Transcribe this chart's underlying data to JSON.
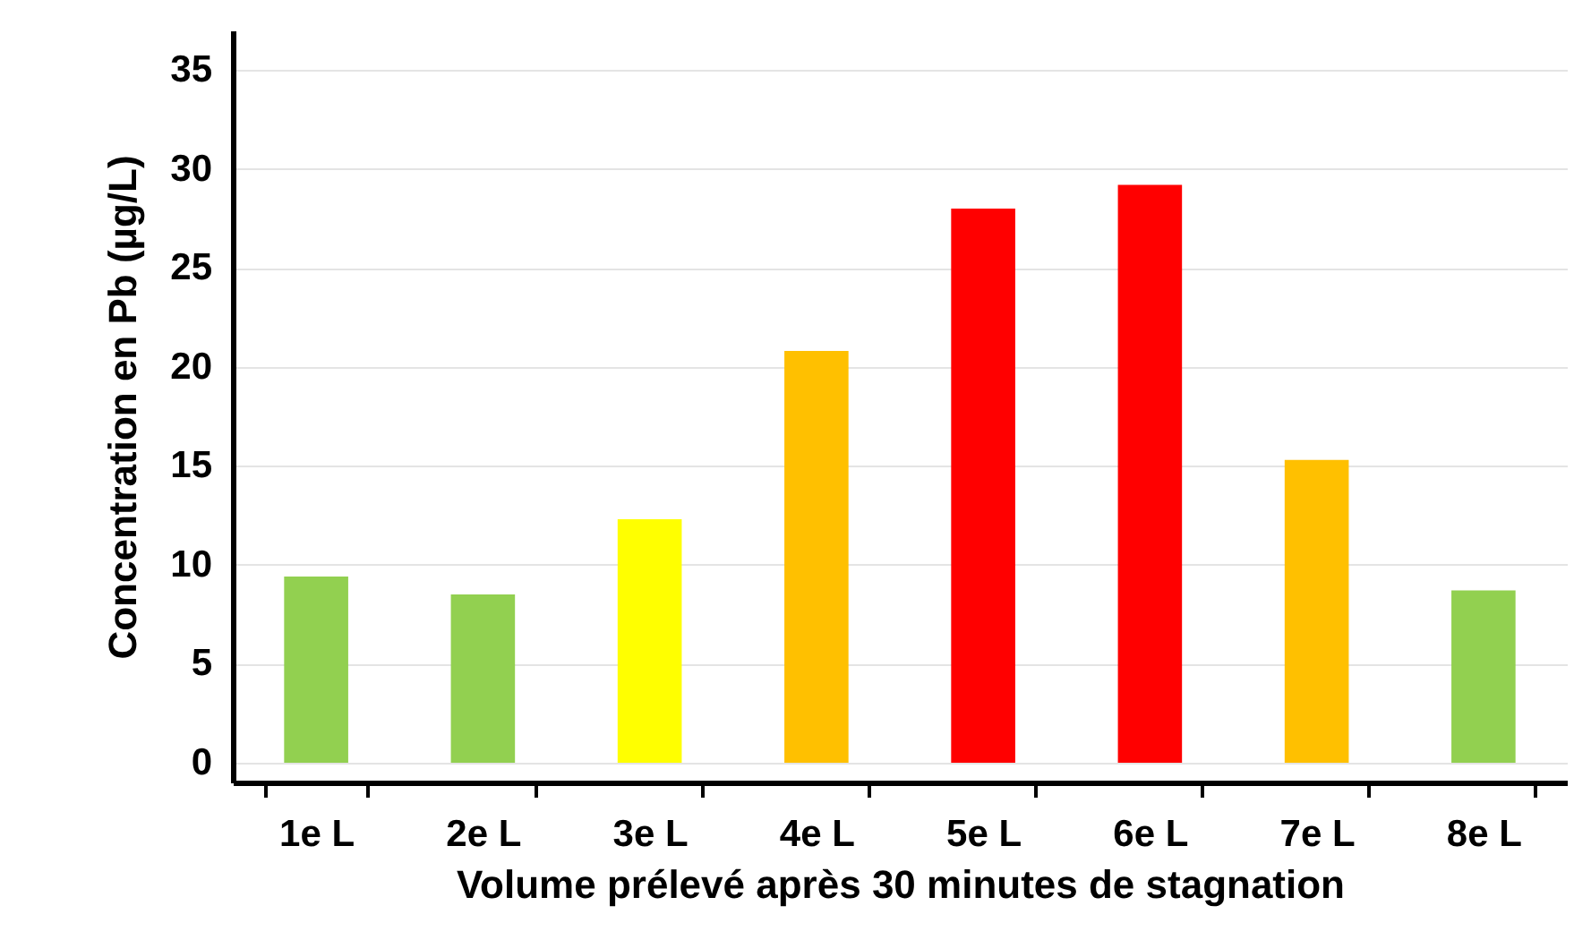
{
  "chart_data": {
    "type": "bar",
    "xlabel": "Volume prélevé après 30 minutes de stagnation",
    "ylabel": "Concentration en Pb (µg/L)",
    "categories": [
      "1e L",
      "2e L",
      "3e L",
      "4e L",
      "5e L",
      "6e L",
      "7e L",
      "8e L"
    ],
    "values": [
      9.4,
      8.5,
      12.3,
      20.8,
      28.0,
      29.2,
      15.3,
      8.7
    ],
    "colors": [
      "#92d050",
      "#92d050",
      "#ffff00",
      "#ffc000",
      "#ff0000",
      "#ff0000",
      "#ffc000",
      "#92d050"
    ],
    "ylim": [
      -1,
      37
    ],
    "yticks": [
      0,
      5,
      10,
      15,
      20,
      25,
      30,
      35
    ],
    "grid": "y"
  }
}
